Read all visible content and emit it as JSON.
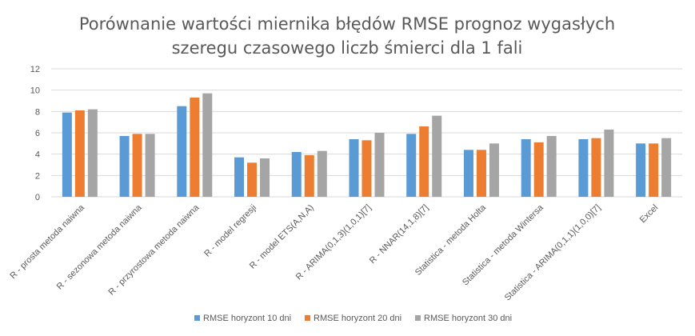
{
  "chart_data": {
    "type": "bar",
    "title": "Porównanie wartości miernika błędów RMSE prognoz wygasłych szeregu czasowego liczb śmierci dla 1 fali",
    "title_lines": [
      "Porównanie wartości miernika błędów RMSE prognoz wygasłych",
      "szeregu czasowego liczb śmierci dla 1 fali"
    ],
    "xlabel": "",
    "ylabel": "",
    "ylim": [
      0,
      12
    ],
    "yticks": [
      0,
      2,
      4,
      6,
      8,
      10,
      12
    ],
    "grid": true,
    "legend_position": "bottom",
    "categories": [
      "R - prosta metoda naiwna",
      "R - sezonowa metoda naiwna",
      "R - przyrostowa metoda naiwna",
      "R - model regresji",
      "R - model ETS(A,N,A)",
      "R - ARIMA(0,1,3)(1,0,1)[7]",
      "R - NNAR(14,1,8)[7]",
      "Statistica - metoda Holta",
      "Statistica - metoda Wintersa",
      "Statistica - ARIMA(0,1,1)(1,0,0)[7]",
      "Excel"
    ],
    "series": [
      {
        "name": "RMSE horyzont 10 dni",
        "color": "#5b9bd5",
        "values": [
          7.9,
          5.7,
          8.5,
          3.7,
          4.2,
          5.4,
          5.9,
          4.4,
          5.4,
          5.4,
          5.0
        ]
      },
      {
        "name": "RMSE horyzont 20 dni",
        "color": "#ed7d31",
        "values": [
          8.1,
          5.9,
          9.3,
          3.2,
          3.9,
          5.3,
          6.6,
          4.4,
          5.1,
          5.5,
          5.0
        ]
      },
      {
        "name": "RMSE horyzont 30 dni",
        "color": "#a5a5a5",
        "values": [
          8.2,
          5.9,
          9.7,
          3.6,
          4.3,
          6.0,
          7.6,
          5.0,
          5.7,
          6.3,
          5.5
        ]
      }
    ]
  }
}
